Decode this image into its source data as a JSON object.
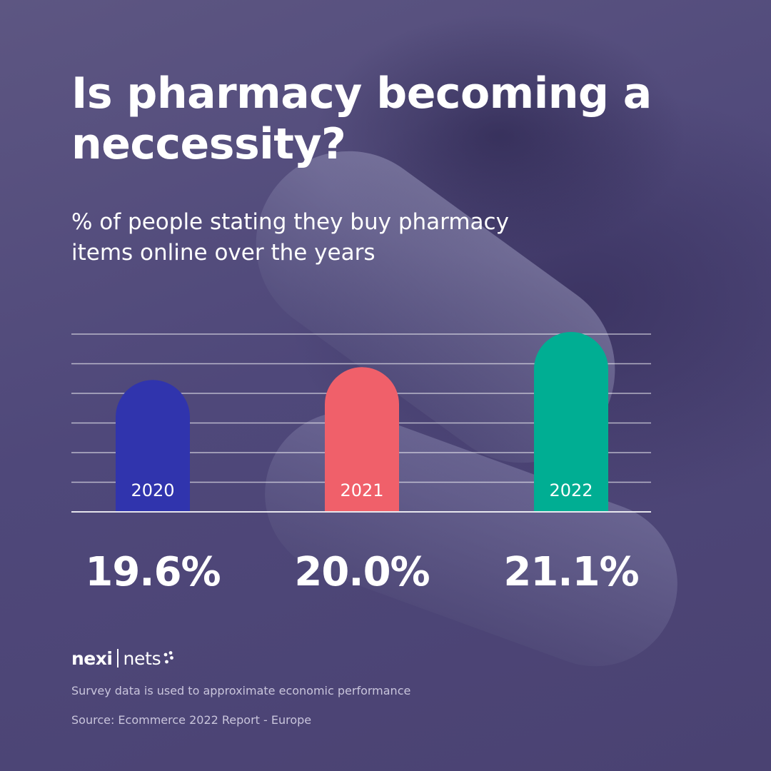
{
  "title": "Is pharmacy becoming a neccessity?",
  "subtitle_lines": [
    "% of people stating they buy pharmacy",
    "items online over the years"
  ],
  "chart_data": {
    "type": "bar",
    "title": "Is pharmacy becoming a neccessity?",
    "subtitle": "% of people stating they buy pharmacy items online over the years",
    "categories": [
      "2020",
      "2021",
      "2022"
    ],
    "values": [
      19.6,
      20.0,
      21.1
    ],
    "value_labels": [
      "19.6%",
      "20.0%",
      "21.1%"
    ],
    "unit": "%",
    "colors": [
      "#3034ad",
      "#f0606a",
      "#00ae93"
    ],
    "ylim": [
      15.5,
      21.1
    ],
    "grid": true,
    "legend": "none"
  },
  "brand": {
    "name_left": "nexi",
    "name_right": "nets"
  },
  "notes": {
    "disclaimer": "Survey data is used to approximate economic performance",
    "source": "Source: Ecommerce 2022 Report - Europe"
  }
}
